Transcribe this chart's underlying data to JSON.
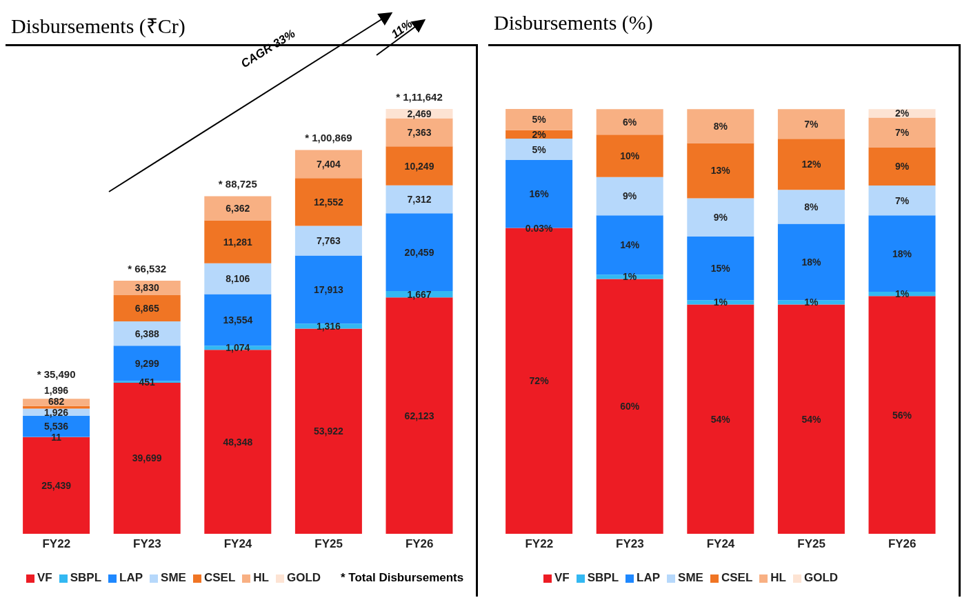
{
  "chart_data": [
    {
      "type": "bar",
      "title": "Disbursements (₹Cr)",
      "stacked": true,
      "legend": "bottom",
      "categories": [
        "FY22",
        "FY23",
        "FY24",
        "FY25",
        "FY26"
      ],
      "series": [
        {
          "name": "VF",
          "color": "#ed1c24",
          "values": [
            25439,
            39699,
            48348,
            53922,
            62123
          ],
          "value_labels": [
            "25,439",
            "39,699",
            "48,348",
            "53,922",
            "62,123"
          ]
        },
        {
          "name": "SBPL",
          "color": "#33b8f2",
          "values": [
            11,
            451,
            1074,
            1316,
            1667
          ],
          "value_labels": [
            "11",
            "451",
            "1,074",
            "1,316",
            "1,667"
          ]
        },
        {
          "name": "LAP",
          "color": "#1e88ff",
          "values": [
            5536,
            9299,
            13554,
            17913,
            20459
          ],
          "value_labels": [
            "5,536",
            "9,299",
            "13,554",
            "17,913",
            "20,459"
          ]
        },
        {
          "name": "SME",
          "color": "#b6d8fb",
          "values": [
            1926,
            6388,
            8106,
            7763,
            7312
          ],
          "value_labels": [
            "1,926",
            "6,388",
            "8,106",
            "7,763",
            "7,312"
          ]
        },
        {
          "name": "CSEL",
          "color": "#f07524",
          "values": [
            682,
            6865,
            11281,
            12552,
            10249
          ],
          "value_labels": [
            "682",
            "6,865",
            "11,281",
            "12,552",
            "10,249"
          ]
        },
        {
          "name": "HL",
          "color": "#f8b083",
          "values": [
            1896,
            3830,
            6362,
            7404,
            7363
          ],
          "value_labels": [
            "1,896",
            "3,830",
            "6,362",
            "7,404",
            "7,363"
          ]
        },
        {
          "name": "GOLD",
          "color": "#fde3d3",
          "values": [
            null,
            null,
            null,
            null,
            2469
          ],
          "value_labels": [
            null,
            null,
            null,
            null,
            "2,469"
          ]
        }
      ],
      "totals": [
        "* 35,490",
        "* 66,532",
        "* 88,725",
        "* 1,00,869",
        "* 1,11,642"
      ],
      "annotations": [
        "CAGR 33%",
        "11%",
        "* Total Disbursements"
      ]
    },
    {
      "type": "bar",
      "title": "Disbursements (%)",
      "stacked": true,
      "legend": "bottom",
      "categories": [
        "FY22",
        "FY23",
        "FY24",
        "FY25",
        "FY26"
      ],
      "series": [
        {
          "name": "VF",
          "color": "#ed1c24",
          "values": [
            72,
            60,
            54,
            54,
            56
          ],
          "value_labels": [
            "72%",
            "60%",
            "54%",
            "54%",
            "56%"
          ]
        },
        {
          "name": "SBPL",
          "color": "#33b8f2",
          "values": [
            0.03,
            1,
            1,
            1,
            1
          ],
          "value_labels": [
            "0.03%",
            "1%",
            "1%",
            "1%",
            "1%"
          ]
        },
        {
          "name": "LAP",
          "color": "#1e88ff",
          "values": [
            16,
            14,
            15,
            18,
            18
          ],
          "value_labels": [
            "16%",
            "14%",
            "15%",
            "18%",
            "18%"
          ]
        },
        {
          "name": "SME",
          "color": "#b6d8fb",
          "values": [
            5,
            9,
            9,
            8,
            7
          ],
          "value_labels": [
            "5%",
            "9%",
            "9%",
            "8%",
            "7%"
          ]
        },
        {
          "name": "CSEL",
          "color": "#f07524",
          "values": [
            2,
            10,
            13,
            12,
            9
          ],
          "value_labels": [
            "2%",
            "10%",
            "13%",
            "12%",
            "9%"
          ]
        },
        {
          "name": "HL",
          "color": "#f8b083",
          "values": [
            5,
            6,
            8,
            7,
            7
          ],
          "value_labels": [
            "5%",
            "6%",
            "8%",
            "7%",
            "7%"
          ]
        },
        {
          "name": "GOLD",
          "color": "#fde3d3",
          "values": [
            null,
            null,
            null,
            null,
            2
          ],
          "value_labels": [
            null,
            null,
            null,
            null,
            "2%"
          ]
        }
      ]
    }
  ]
}
